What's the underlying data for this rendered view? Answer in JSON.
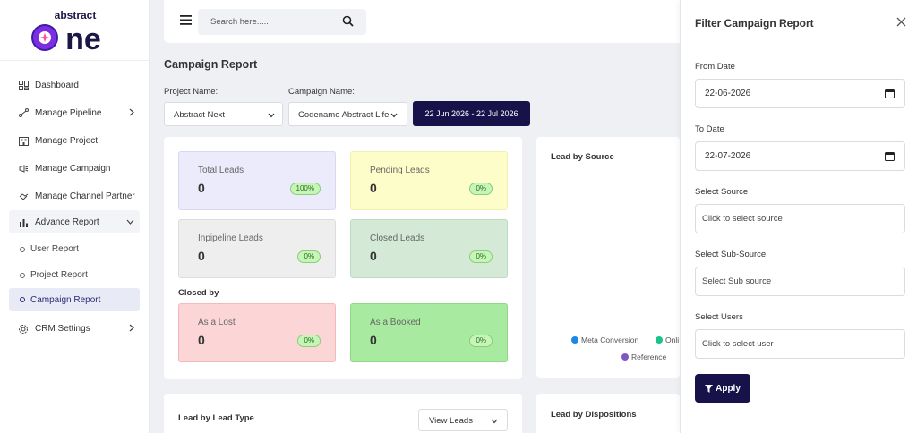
{
  "brand": {
    "logo_top": "abstract",
    "logo_main": "one"
  },
  "sidebar": {
    "items": [
      {
        "label": "Dashboard"
      },
      {
        "label": "Manage Pipeline"
      },
      {
        "label": "Manage Project"
      },
      {
        "label": "Manage Campaign"
      },
      {
        "label": "Manage Channel Partner"
      },
      {
        "label": "Advance Report"
      },
      {
        "label": "CRM Settings"
      }
    ],
    "sub_items": [
      {
        "label": "User Report"
      },
      {
        "label": "Project Report"
      },
      {
        "label": "Campaign Report"
      }
    ]
  },
  "topbar": {
    "search_placeholder": "Search here....."
  },
  "page": {
    "title": "Campaign Report",
    "project_label": "Project Name:",
    "project_value": "Abstract Next",
    "campaign_label": "Campaign Name:",
    "campaign_value": "Codename Abstract Life",
    "date_range": "22 Jun 2026 - 22 Jul 2026"
  },
  "stats": {
    "cards": [
      {
        "title": "Total Leads",
        "value": "0",
        "badge": "100%"
      },
      {
        "title": "Pending Leads",
        "value": "0",
        "badge": "0%"
      },
      {
        "title": "Inpipeline Leads",
        "value": "0",
        "badge": "0%"
      },
      {
        "title": "Closed Leads",
        "value": "0",
        "badge": "0%"
      },
      {
        "title": "As a Lost",
        "value": "0",
        "badge": "0%"
      },
      {
        "title": "As a Booked",
        "value": "0",
        "badge": "0%"
      }
    ],
    "closed_by": "Closed by"
  },
  "lead_by_source": {
    "title": "Lead by Source",
    "legend": [
      {
        "name": "Meta Conversion",
        "color": "#1e88e5"
      },
      {
        "name": "Onli",
        "color": "#19c38a"
      },
      {
        "name": "Reference",
        "color": "#7e57c2"
      }
    ]
  },
  "lead_by_type": {
    "title": "Lead by Lead Type",
    "view_label": "View Leads"
  },
  "lead_by_dispositions": {
    "title": "Lead by Dispositions"
  },
  "filter": {
    "title": "Filter Campaign Report",
    "from_label": "From Date",
    "from_value": "22-06-2026",
    "to_label": "To Date",
    "to_value": "22-07-2026",
    "source_label": "Select Source",
    "source_placeholder": "Click to select source",
    "subsource_label": "Select Sub-Source",
    "subsource_placeholder": "Select Sub source",
    "users_label": "Select Users",
    "users_placeholder": "Click to select user",
    "apply_label": "Apply"
  },
  "colors": {
    "brand_dark": "#17124a",
    "card_blue": "#ebebfb",
    "card_yellow": "#fdfdc9",
    "card_grey": "#eeeeee",
    "card_green": "#d4ead7",
    "card_red": "#fcd6d6",
    "card_bright_green": "#a8eba0"
  }
}
